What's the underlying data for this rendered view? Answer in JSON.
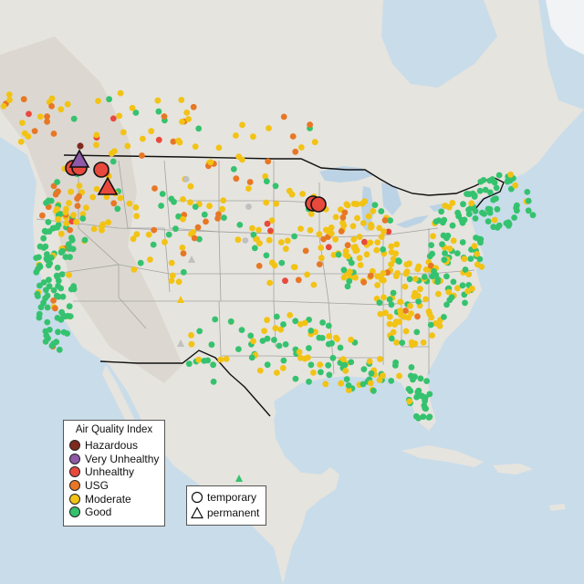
{
  "legend_aqi": {
    "title": "Air Quality Index",
    "items": [
      {
        "label": "Hazardous",
        "color": "#7e2a1f"
      },
      {
        "label": "Very Unhealthy",
        "color": "#8e59a8"
      },
      {
        "label": "Unhealthy",
        "color": "#e8493d"
      },
      {
        "label": "USG",
        "color": "#e77725"
      },
      {
        "label": "Moderate",
        "color": "#f2c314"
      },
      {
        "label": "Good",
        "color": "#35c26f"
      }
    ]
  },
  "legend_type": {
    "items": [
      {
        "label": "temporary",
        "shape": "circle"
      },
      {
        "label": "permanent",
        "shape": "triangle"
      }
    ]
  },
  "colors": {
    "ocean": "#c9dcea",
    "land": "#e6e4de",
    "land_highland": "#d9d5cd",
    "ice": "#f1f3f5",
    "lake": "#bcd3e5",
    "state_border": "#a3a3a3",
    "us_border": "#111111",
    "no_data": "#c0c0c0"
  }
}
